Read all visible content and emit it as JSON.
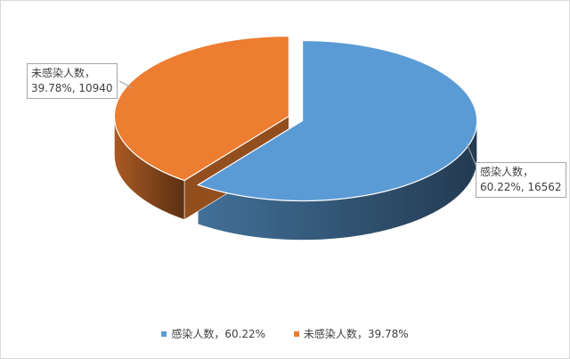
{
  "chart_data": {
    "type": "pie",
    "style": "3d-exploded",
    "title": "",
    "slices": [
      {
        "label": "感染人数",
        "percent": 60.22,
        "value": 16562,
        "color": "#5b9bd5",
        "callout_name": "感染人数，",
        "callout_values": "60.22%, 16562",
        "legend_text": "感染人数，60.22%"
      },
      {
        "label": "未感染人数",
        "percent": 39.78,
        "value": 10940,
        "color": "#ed7d31",
        "callout_name": "未感染人数，",
        "callout_values": "39.78%, 10940",
        "legend_text": "未感染人数，39.78%"
      }
    ],
    "legend_position": "bottom"
  }
}
